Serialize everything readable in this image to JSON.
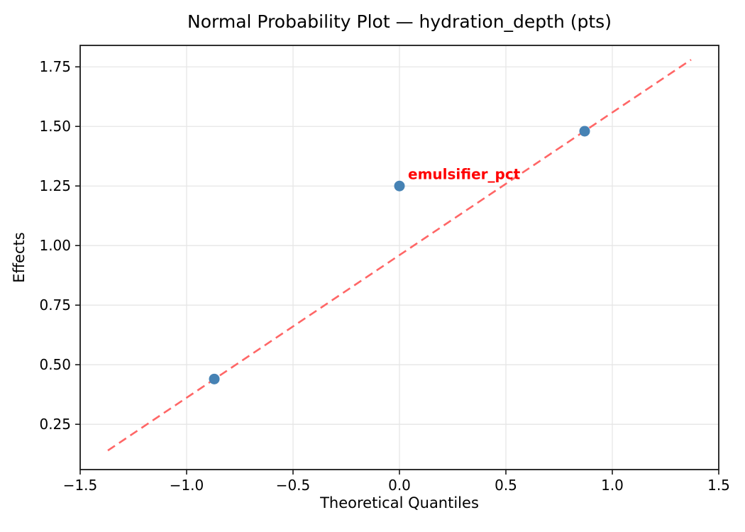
{
  "chart_data": {
    "type": "scatter",
    "title": "Normal Probability Plot — hydration_depth (pts)",
    "xlabel": "Theoretical Quantiles",
    "ylabel": "Effects",
    "xlim": [
      -1.5,
      1.5
    ],
    "ylim": [
      0.06,
      1.84
    ],
    "grid": true,
    "legend": false,
    "xticks": {
      "values": [
        -1.5,
        -1.0,
        -0.5,
        0.0,
        0.5,
        1.0,
        1.5
      ],
      "labels": [
        "−1.5",
        "−1.0",
        "−0.5",
        "0.0",
        "0.5",
        "1.0",
        "1.5"
      ]
    },
    "yticks": {
      "values": [
        0.25,
        0.5,
        0.75,
        1.0,
        1.25,
        1.5,
        1.75
      ],
      "labels": [
        "0.25",
        "0.50",
        "0.75",
        "1.00",
        "1.25",
        "1.50",
        "1.75"
      ]
    },
    "series": [
      {
        "name": "effects",
        "points": [
          {
            "x": -0.87,
            "y": 0.44
          },
          {
            "x": 0.0,
            "y": 1.25
          },
          {
            "x": 0.87,
            "y": 1.48
          }
        ]
      }
    ],
    "fit_line": {
      "style": "dashed",
      "x1": -1.37,
      "y1": 0.14,
      "x2": 1.37,
      "y2": 1.78
    },
    "annotation": {
      "text": "emulsifier_pct",
      "x": 0.04,
      "y": 1.3
    },
    "colors": {
      "points": "#4682B4",
      "fit_line": "#ff6666",
      "annotation": "#ff0000",
      "grid": "#e6e6e6",
      "spine": "#1a1a1a",
      "text": "#000000",
      "background": "#ffffff"
    }
  }
}
